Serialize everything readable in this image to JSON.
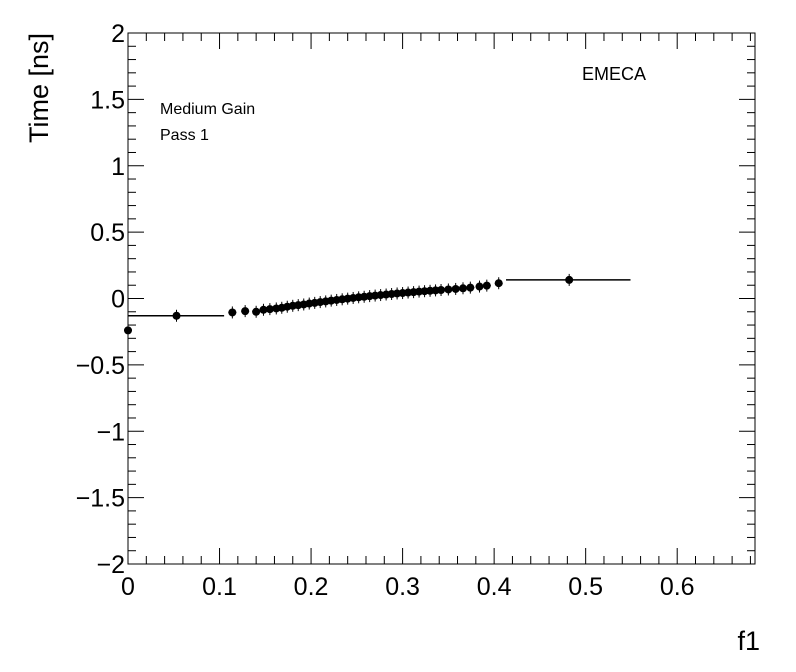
{
  "chart_data": {
    "type": "scatter",
    "title": "",
    "xlabel": "f1",
    "ylabel": "Time [ns]",
    "xlim": [
      0,
      0.685
    ],
    "ylim": [
      -2,
      2
    ],
    "x_ticks": [
      0,
      0.1,
      0.2,
      0.3,
      0.4,
      0.5,
      0.6
    ],
    "x_tick_labels": [
      "0",
      "0.1",
      "0.2",
      "0.3",
      "0.4",
      "0.5",
      "0.6"
    ],
    "y_ticks": [
      -2,
      -1.5,
      -1,
      -0.5,
      0,
      0.5,
      1,
      1.5,
      2
    ],
    "y_tick_labels": [
      "−2",
      "−1.5",
      "−1",
      "−0.5",
      "0",
      "0.5",
      "1",
      "1.5",
      "2"
    ],
    "grid": false,
    "annotations": {
      "gain": "Medium Gain",
      "pass": "Pass 1",
      "region": "EMECA"
    },
    "points": [
      {
        "x": 0.0,
        "y": -0.24
      },
      {
        "x": 0.053,
        "y": -0.13
      },
      {
        "x": 0.114,
        "y": -0.105
      },
      {
        "x": 0.128,
        "y": -0.095
      },
      {
        "x": 0.14,
        "y": -0.1
      },
      {
        "x": 0.148,
        "y": -0.085
      },
      {
        "x": 0.155,
        "y": -0.08
      },
      {
        "x": 0.162,
        "y": -0.075
      },
      {
        "x": 0.168,
        "y": -0.07
      },
      {
        "x": 0.174,
        "y": -0.062
      },
      {
        "x": 0.18,
        "y": -0.055
      },
      {
        "x": 0.186,
        "y": -0.05
      },
      {
        "x": 0.192,
        "y": -0.045
      },
      {
        "x": 0.198,
        "y": -0.038
      },
      {
        "x": 0.204,
        "y": -0.033
      },
      {
        "x": 0.21,
        "y": -0.027
      },
      {
        "x": 0.216,
        "y": -0.022
      },
      {
        "x": 0.222,
        "y": -0.016
      },
      {
        "x": 0.228,
        "y": -0.011
      },
      {
        "x": 0.234,
        "y": -0.006
      },
      {
        "x": 0.24,
        "y": -0.001
      },
      {
        "x": 0.246,
        "y": 0.004
      },
      {
        "x": 0.252,
        "y": 0.009
      },
      {
        "x": 0.258,
        "y": 0.013
      },
      {
        "x": 0.264,
        "y": 0.018
      },
      {
        "x": 0.27,
        "y": 0.022
      },
      {
        "x": 0.276,
        "y": 0.026
      },
      {
        "x": 0.282,
        "y": 0.03
      },
      {
        "x": 0.288,
        "y": 0.034
      },
      {
        "x": 0.294,
        "y": 0.038
      },
      {
        "x": 0.3,
        "y": 0.041
      },
      {
        "x": 0.306,
        "y": 0.045
      },
      {
        "x": 0.312,
        "y": 0.048
      },
      {
        "x": 0.318,
        "y": 0.052
      },
      {
        "x": 0.324,
        "y": 0.055
      },
      {
        "x": 0.33,
        "y": 0.058
      },
      {
        "x": 0.336,
        "y": 0.061
      },
      {
        "x": 0.342,
        "y": 0.064
      },
      {
        "x": 0.35,
        "y": 0.068
      },
      {
        "x": 0.358,
        "y": 0.072
      },
      {
        "x": 0.366,
        "y": 0.077
      },
      {
        "x": 0.374,
        "y": 0.082
      },
      {
        "x": 0.384,
        "y": 0.09
      },
      {
        "x": 0.392,
        "y": 0.097
      },
      {
        "x": 0.405,
        "y": 0.115
      },
      {
        "x": 0.482,
        "y": 0.14
      }
    ],
    "step_segments": [
      {
        "x0": 0.0,
        "x1": 0.105,
        "y": -0.13
      },
      {
        "x0": 0.413,
        "x1": 0.549,
        "y": 0.14
      }
    ]
  }
}
